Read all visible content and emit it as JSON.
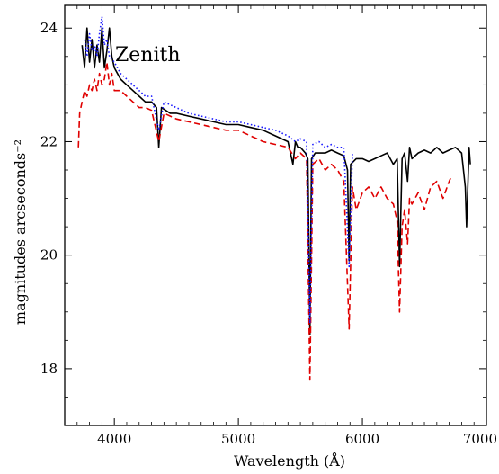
{
  "chart_data": {
    "type": "line",
    "title": "",
    "annotation": "Zenith",
    "xlabel": "Wavelength (Å)",
    "ylabel": "magnitudes arcseconds⁻²",
    "xlim": [
      3600,
      7000
    ],
    "ylim": [
      24.4,
      17.0
    ],
    "y_inverted": true,
    "x_ticks": [
      4000,
      5000,
      6000,
      7000
    ],
    "y_ticks": [
      18,
      20,
      22,
      24
    ],
    "x_tick_labels": [
      "4000",
      "5000",
      "6000",
      "7000"
    ],
    "y_tick_labels": [
      "18",
      "20",
      "22",
      "24"
    ],
    "legend": "none",
    "grid": false,
    "series": [
      {
        "color": "#000000",
        "style": "solid",
        "x": [
          3740,
          3760,
          3780,
          3800,
          3820,
          3840,
          3860,
          3880,
          3900,
          3920,
          3940,
          3960,
          3980,
          4000,
          4050,
          4100,
          4150,
          4200,
          4250,
          4300,
          4340,
          4358,
          4380,
          4450,
          4500,
          4600,
          4700,
          4800,
          4900,
          5000,
          5100,
          5200,
          5300,
          5400,
          5440,
          5460,
          5480,
          5500,
          5540,
          5560,
          5577,
          5590,
          5620,
          5660,
          5700,
          5750,
          5800,
          5850,
          5880,
          5893,
          5905,
          5950,
          6000,
          6050,
          6100,
          6150,
          6200,
          6250,
          6280,
          6300,
          6320,
          6340,
          6364,
          6380,
          6400,
          6450,
          6500,
          6550,
          6600,
          6650,
          6700,
          6750,
          6800,
          6830,
          6840,
          6860,
          6870
        ],
        "y": [
          23.7,
          23.3,
          24.0,
          23.4,
          23.8,
          23.3,
          23.7,
          23.4,
          24.0,
          23.3,
          23.6,
          24.0,
          23.5,
          23.3,
          23.1,
          23.0,
          22.9,
          22.8,
          22.7,
          22.7,
          22.6,
          21.9,
          22.6,
          22.5,
          22.5,
          22.45,
          22.4,
          22.35,
          22.3,
          22.3,
          22.25,
          22.2,
          22.1,
          22.0,
          21.6,
          22.0,
          21.9,
          21.9,
          21.8,
          21.7,
          18.6,
          21.7,
          21.8,
          21.8,
          21.8,
          21.85,
          21.8,
          21.75,
          21.5,
          19.9,
          21.6,
          21.7,
          21.7,
          21.65,
          21.7,
          21.75,
          21.8,
          21.6,
          21.7,
          19.8,
          21.7,
          21.8,
          21.3,
          21.9,
          21.7,
          21.8,
          21.85,
          21.8,
          21.9,
          21.8,
          21.85,
          21.9,
          21.8,
          21.2,
          20.5,
          21.9,
          21.6
        ]
      },
      {
        "color": "#e00000",
        "style": "dashed",
        "x": [
          3710,
          3720,
          3740,
          3760,
          3780,
          3800,
          3820,
          3840,
          3860,
          3880,
          3900,
          3920,
          3940,
          3960,
          3980,
          4000,
          4050,
          4100,
          4150,
          4200,
          4250,
          4300,
          4358,
          4400,
          4500,
          4600,
          4700,
          4800,
          4900,
          5000,
          5100,
          5200,
          5300,
          5400,
          5460,
          5500,
          5550,
          5577,
          5600,
          5650,
          5700,
          5750,
          5800,
          5850,
          5893,
          5920,
          5950,
          6000,
          6050,
          6100,
          6150,
          6200,
          6250,
          6280,
          6300,
          6320,
          6340,
          6364,
          6380,
          6400,
          6450,
          6500,
          6550,
          6600,
          6650,
          6700,
          6720
        ],
        "y": [
          21.9,
          22.5,
          22.7,
          22.9,
          22.8,
          23.0,
          22.9,
          23.1,
          22.9,
          23.2,
          23.0,
          23.1,
          23.4,
          23.0,
          23.2,
          22.9,
          22.9,
          22.8,
          22.7,
          22.6,
          22.6,
          22.55,
          22.0,
          22.5,
          22.4,
          22.35,
          22.3,
          22.25,
          22.2,
          22.2,
          22.1,
          22.0,
          21.95,
          21.9,
          21.7,
          21.8,
          21.7,
          17.8,
          21.6,
          21.7,
          21.5,
          21.6,
          21.5,
          21.3,
          18.7,
          21.2,
          20.8,
          21.1,
          21.2,
          21.0,
          21.2,
          21.0,
          20.9,
          20.6,
          19.0,
          20.5,
          20.8,
          20.2,
          21.0,
          20.9,
          21.1,
          20.8,
          21.2,
          21.3,
          21.0,
          21.3,
          21.4
        ]
      },
      {
        "color": "#1a1aff",
        "style": "dotted",
        "x": [
          3760,
          3780,
          3800,
          3820,
          3840,
          3860,
          3880,
          3900,
          3920,
          3940,
          3960,
          4000,
          4050,
          4100,
          4150,
          4200,
          4250,
          4300,
          4358,
          4400,
          4500,
          4600,
          4700,
          4800,
          4900,
          5000,
          5100,
          5200,
          5300,
          5400,
          5460,
          5500,
          5550,
          5577,
          5600,
          5650,
          5700,
          5750,
          5800,
          5850,
          5893,
          5920
        ],
        "y": [
          23.8,
          23.5,
          23.9,
          23.6,
          23.7,
          23.5,
          23.9,
          24.2,
          23.7,
          23.8,
          23.5,
          23.4,
          23.2,
          23.1,
          23.0,
          22.9,
          22.8,
          22.8,
          22.2,
          22.7,
          22.6,
          22.5,
          22.45,
          22.4,
          22.35,
          22.35,
          22.3,
          22.25,
          22.2,
          22.1,
          22.0,
          22.05,
          22.0,
          18.8,
          21.95,
          22.0,
          21.9,
          21.95,
          21.9,
          21.9,
          19.8,
          21.8
        ]
      }
    ]
  }
}
